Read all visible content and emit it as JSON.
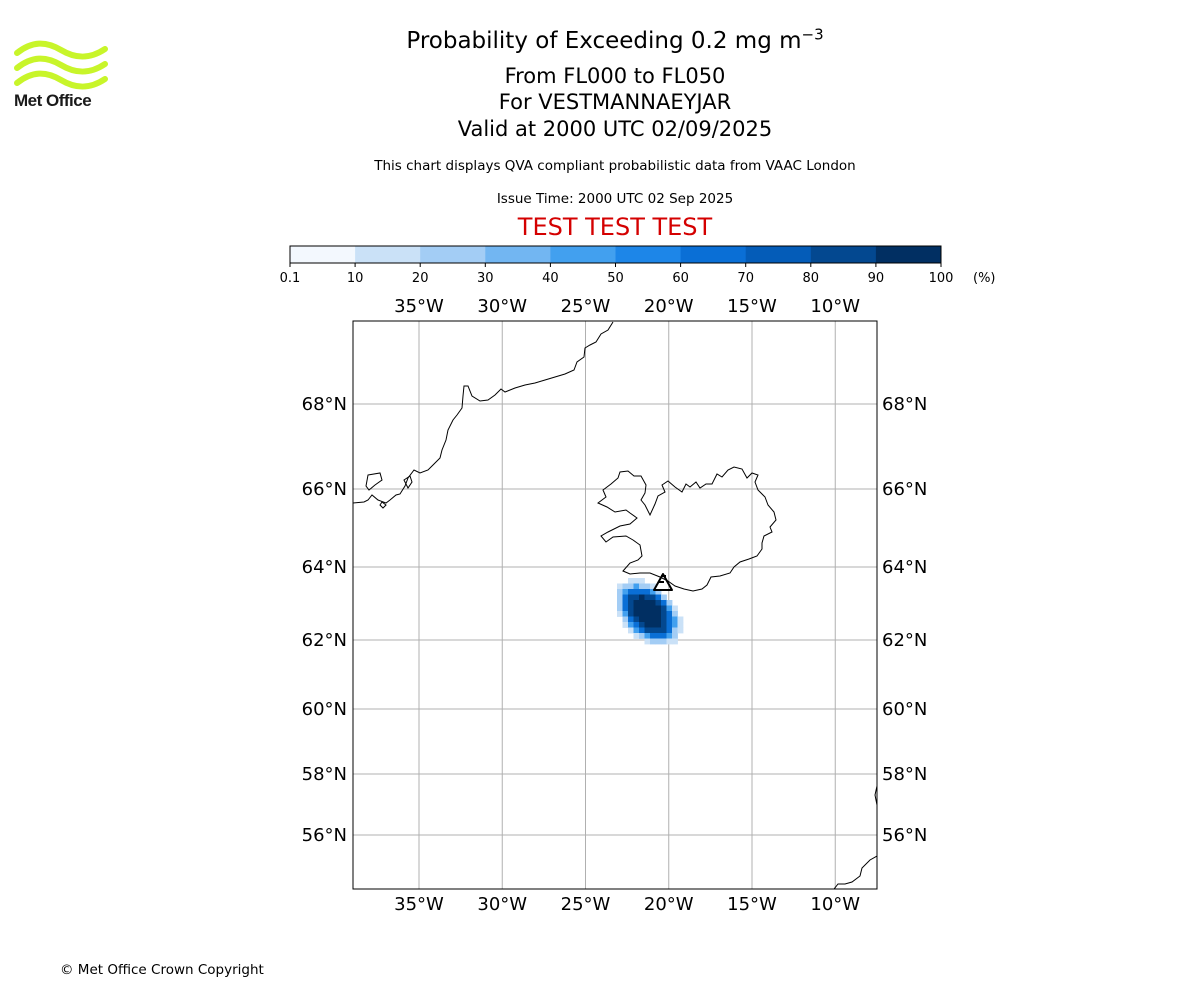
{
  "header": {
    "title_main": "Probability of Exceeding 0.2 mg m",
    "title_exponent": "−3",
    "subtitle_levels": "From FL000 to FL050",
    "subtitle_volcano": "For VESTMANNAEYJAR",
    "subtitle_valid": "Valid at 2000 UTC 02/09/2025",
    "disclaimer": "This chart displays QVA compliant probabilistic data from VAAC London",
    "issue_time": "Issue Time: 2000 UTC 02 Sep 2025",
    "test_banner": "TEST TEST TEST"
  },
  "logo": {
    "text": "Met Office",
    "color": "#c8f52a"
  },
  "colorbar": {
    "ticks": [
      "0.1",
      "10",
      "20",
      "30",
      "40",
      "50",
      "60",
      "70",
      "80",
      "90",
      "100"
    ],
    "unit": "(%)",
    "colors": [
      "#f3f8fe",
      "#cae1f7",
      "#a3cdf5",
      "#72b6f2",
      "#42a0ef",
      "#1d86e8",
      "#0a6fd6",
      "#045cb8",
      "#034890",
      "#012f62"
    ]
  },
  "map": {
    "lon_labels": [
      "35°W",
      "30°W",
      "25°W",
      "20°W",
      "15°W",
      "10°W"
    ],
    "lon_values": [
      -35,
      -30,
      -25,
      -20,
      -15,
      -10
    ],
    "lat_labels": [
      "68°N",
      "66°N",
      "64°N",
      "62°N",
      "60°N",
      "58°N",
      "56°N"
    ],
    "lat_values": [
      68,
      66,
      64,
      62,
      60,
      58,
      56
    ],
    "volcano_marker": "volcano-icon",
    "gridline_color": "#b0b0b0",
    "plume_cells_percent_band": "0-100"
  },
  "footer": {
    "copyright": "© Met Office Crown Copyright"
  }
}
